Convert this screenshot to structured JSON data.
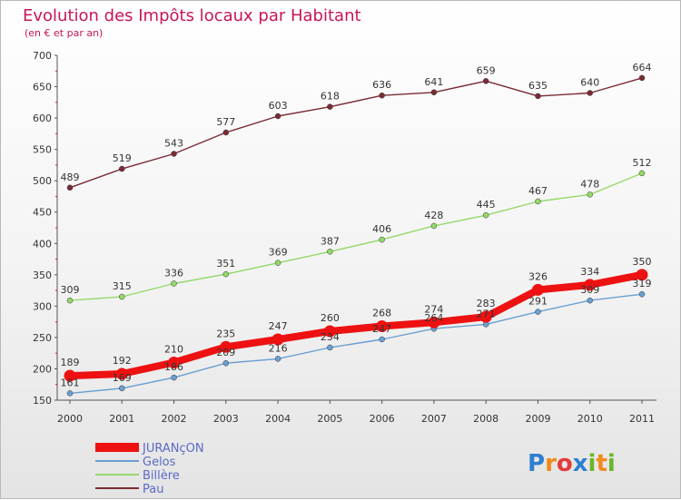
{
  "chart_data": {
    "type": "line",
    "title": "Evolution des Impôts locaux par Habitant",
    "subtitle": "(en € et par an)",
    "xlabel": "",
    "ylabel": "",
    "categories": [
      "2000",
      "2001",
      "2002",
      "2003",
      "2004",
      "2005",
      "2006",
      "2007",
      "2008",
      "2009",
      "2010",
      "2011"
    ],
    "ylim": [
      150,
      700
    ],
    "yticks": [
      150,
      200,
      250,
      300,
      350,
      400,
      450,
      500,
      550,
      600,
      650,
      700
    ],
    "grid": false,
    "series": [
      {
        "name": "JURANçON",
        "color": "#ee1111",
        "highlight": true,
        "values": [
          189,
          192,
          210,
          235,
          247,
          260,
          268,
          274,
          283,
          326,
          334,
          350
        ]
      },
      {
        "name": "Gelos",
        "color": "#6a9fd1",
        "highlight": false,
        "values": [
          161,
          169,
          186,
          209,
          216,
          234,
          247,
          264,
          271,
          291,
          309,
          319
        ]
      },
      {
        "name": "Billère",
        "color": "#95d86a",
        "highlight": false,
        "values": [
          309,
          315,
          336,
          351,
          369,
          387,
          406,
          428,
          445,
          467,
          478,
          512
        ]
      },
      {
        "name": "Pau",
        "color": "#7a2b35",
        "highlight": false,
        "values": [
          489,
          519,
          543,
          577,
          603,
          618,
          636,
          641,
          659,
          635,
          640,
          664
        ]
      }
    ],
    "legend_position": "bottom-left"
  },
  "brand": {
    "letters": [
      "P",
      "r",
      "o",
      "x",
      "i",
      "t",
      "i"
    ],
    "colors": [
      "#2f7fd0",
      "#f08a1c",
      "#e23b3b",
      "#2f7fd0",
      "#6ab62a",
      "#f08a1c",
      "#6ab62a"
    ]
  }
}
